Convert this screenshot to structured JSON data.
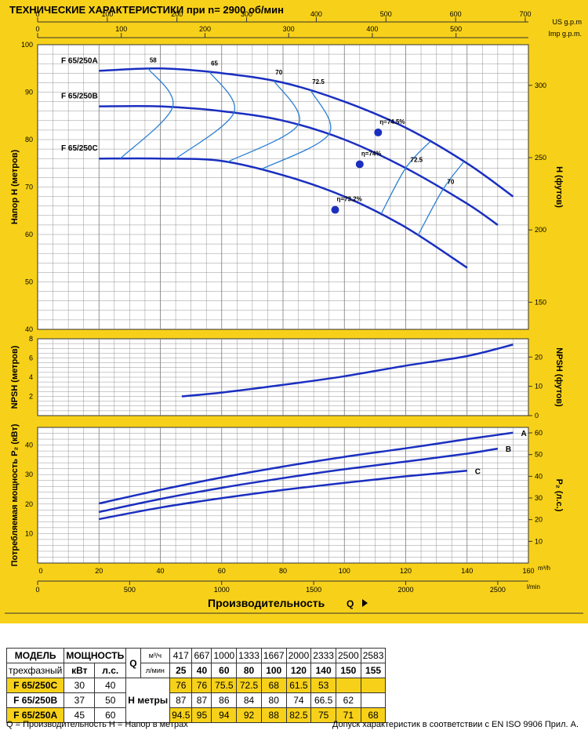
{
  "title": "ТЕХНИЧЕСКИЕ ХАРАКТЕРИСТИКИ при n= 2900 об/мин",
  "top_axes": {
    "us_gpm_label": "US g.p.m",
    "us_gpm_ticks": [
      "0",
      "100",
      "200",
      "300",
      "400",
      "500",
      "600",
      "700"
    ],
    "imp_gpm_label": "Imp g.p.m.",
    "imp_gpm_ticks": [
      "0",
      "100",
      "200",
      "300",
      "400",
      "500",
      "600"
    ]
  },
  "bottom_axes": {
    "m3h_label": "m³/h",
    "m3h_ticks": [
      "0",
      "20",
      "40",
      "60",
      "80",
      "100",
      "120",
      "140",
      "160"
    ],
    "lmin_label": "l/min",
    "lmin_ticks": [
      "0",
      "500",
      "1000",
      "1500",
      "2000",
      "2500"
    ],
    "q_label": "Производительность",
    "q_symbol": "Q"
  },
  "chart_data": [
    {
      "type": "line",
      "id": "head",
      "xlabel": "",
      "ylabel": "Напор  H  (метров)",
      "y2label": "H  (футов)",
      "xlim": [
        0,
        160
      ],
      "ylim": [
        40,
        100
      ],
      "yticks": [
        40,
        50,
        60,
        70,
        80,
        90,
        100
      ],
      "y2ticks": [
        150,
        200,
        250,
        300
      ],
      "grid": true,
      "series": [
        {
          "name": "F 65/250A",
          "x": [
            20,
            40,
            60,
            80,
            100,
            120,
            140,
            155
          ],
          "y": [
            94.5,
            95,
            94,
            92,
            88,
            82.5,
            75,
            68
          ]
        },
        {
          "name": "F 65/250B",
          "x": [
            20,
            40,
            60,
            80,
            100,
            120,
            140,
            150
          ],
          "y": [
            87,
            87,
            86,
            84,
            80,
            74,
            66.5,
            62
          ]
        },
        {
          "name": "F 65/250C",
          "x": [
            20,
            40,
            60,
            80,
            100,
            120,
            140
          ],
          "y": [
            76,
            76,
            75.5,
            72.5,
            68,
            61.5,
            53
          ]
        }
      ],
      "efficiency_labels": [
        "58",
        "65",
        "70",
        "72.5",
        "72.5",
        "70"
      ],
      "best_efficiency_points": [
        {
          "label": "η=74.5%",
          "x": 111,
          "y": 81.5
        },
        {
          "label": "η=74%",
          "x": 105,
          "y": 74.8
        },
        {
          "label": "η=73.2%",
          "x": 97,
          "y": 65.2
        }
      ]
    },
    {
      "type": "line",
      "id": "npsh",
      "ylabel": "NPSH  (метров)",
      "y2label": "NPSH  (футов)",
      "xlim": [
        0,
        160
      ],
      "ylim": [
        0,
        8
      ],
      "yticks": [
        2,
        4,
        6,
        8
      ],
      "y2ticks": [
        0,
        10,
        20
      ],
      "grid": true,
      "series": [
        {
          "name": "NPSH",
          "x": [
            47,
            60,
            80,
            100,
            120,
            140,
            155
          ],
          "y": [
            2,
            2.4,
            3.2,
            4.1,
            5.2,
            6.2,
            7.4
          ]
        }
      ]
    },
    {
      "type": "line",
      "id": "power",
      "ylabel": "Потребляемая мощность  P₂ (кВт)",
      "y2label": "P₂ (л.с.)",
      "xlim": [
        0,
        160
      ],
      "ylim": [
        0,
        46
      ],
      "yticks": [
        10,
        20,
        30,
        40
      ],
      "y2ticks": [
        10,
        20,
        30,
        40,
        50,
        60
      ],
      "grid": true,
      "series": [
        {
          "name": "A",
          "x": [
            20,
            40,
            60,
            80,
            100,
            120,
            140,
            155
          ],
          "y": [
            20.2,
            24.8,
            29,
            32.7,
            36,
            38.9,
            42,
            44.2
          ]
        },
        {
          "name": "B",
          "x": [
            20,
            40,
            60,
            80,
            100,
            120,
            140,
            150
          ],
          "y": [
            17.3,
            21.7,
            25.5,
            28.8,
            31.8,
            34.4,
            37.1,
            38.8
          ]
        },
        {
          "name": "C",
          "x": [
            20,
            40,
            60,
            80,
            100,
            120,
            140
          ],
          "y": [
            14.9,
            18.8,
            22,
            24.8,
            27.2,
            29.4,
            31.3
          ]
        }
      ]
    }
  ],
  "table": {
    "model_header": "МОДЕЛЬ",
    "model_sub": "трехфазный",
    "power_header": "МОЩНОСТЬ",
    "kw_header": "кВт",
    "hp_header": "л.с.",
    "q_header": "Q",
    "m3h_unit": "м³/ч",
    "lmin_unit": "л/мин",
    "h_header": "H метры",
    "q_lmin": [
      "417",
      "667",
      "1000",
      "1333",
      "1667",
      "2000",
      "2333",
      "2500",
      "2583"
    ],
    "q_m3h": [
      "25",
      "40",
      "60",
      "80",
      "100",
      "120",
      "140",
      "150",
      "155"
    ],
    "rows": [
      {
        "model": "F 65/250C",
        "kw": "30",
        "hp": "40",
        "h": [
          "76",
          "76",
          "75.5",
          "72.5",
          "68",
          "61.5",
          "53",
          "",
          ""
        ]
      },
      {
        "model": "F 65/250B",
        "kw": "37",
        "hp": "50",
        "h": [
          "87",
          "87",
          "86",
          "84",
          "80",
          "74",
          "66.5",
          "62",
          ""
        ]
      },
      {
        "model": "F 65/250A",
        "kw": "45",
        "hp": "60",
        "h": [
          "94.5",
          "95",
          "94",
          "92",
          "88",
          "82.5",
          "75",
          "71",
          "68"
        ]
      }
    ]
  },
  "footer": {
    "legend": "Q = Производительность  H = Напор в метрах",
    "note": "Допуск характеристик в соответствии с EN ISO 9906 Прил.  A."
  },
  "colors": {
    "background": "#f7d119",
    "curve": "#1a2fc0",
    "grid": "#7a7a7a",
    "plot_bg": "#ffffff"
  }
}
